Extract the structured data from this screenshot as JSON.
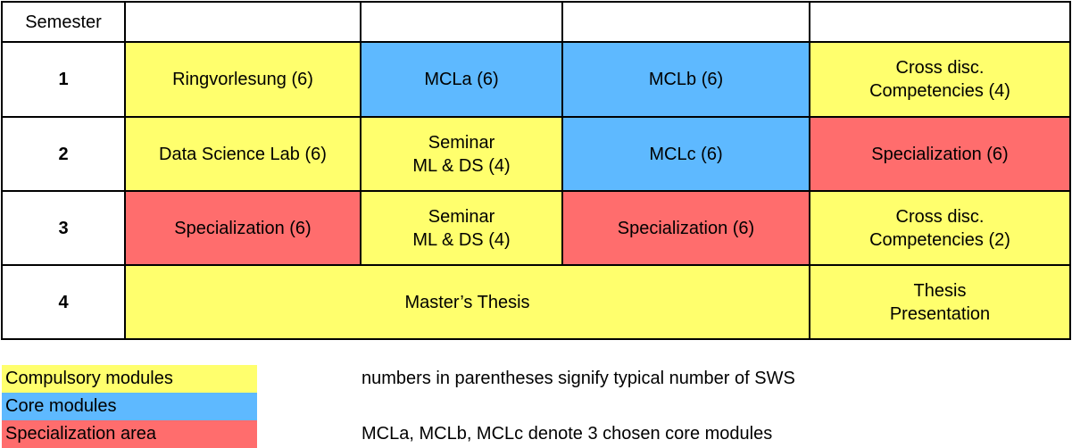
{
  "colors": {
    "compulsory": "#ffff6d",
    "core": "#5eb9ff",
    "specialization": "#ff6d6d"
  },
  "table": {
    "header": "Semester",
    "rows": [
      {
        "semester": "1",
        "cells": [
          "Ringvorlesung (6)",
          "MCLa (6)",
          "MCLb (6)",
          "Cross disc.\nCompetencies (4)"
        ]
      },
      {
        "semester": "2",
        "cells": [
          "Data Science Lab (6)",
          "Seminar\nML & DS (4)",
          "MCLc (6)",
          "Specialization (6)"
        ]
      },
      {
        "semester": "3",
        "cells": [
          "Specialization (6)",
          "Seminar\nML & DS (4)",
          "Specialization (6)",
          "Cross disc.\nCompetencies (2)"
        ]
      },
      {
        "semester": "4",
        "cells": [
          "Master’s Thesis",
          "Thesis\nPresentation"
        ]
      }
    ]
  },
  "legend": [
    {
      "label": "Compulsory modules",
      "type": "compulsory"
    },
    {
      "label": "Core modules",
      "type": "core"
    },
    {
      "label": "Specialization area",
      "type": "specialization"
    }
  ],
  "notes": [
    "numbers in parentheses signify typical number of SWS",
    "MCLa, MCLb, MCLc denote 3 chosen core modules"
  ]
}
